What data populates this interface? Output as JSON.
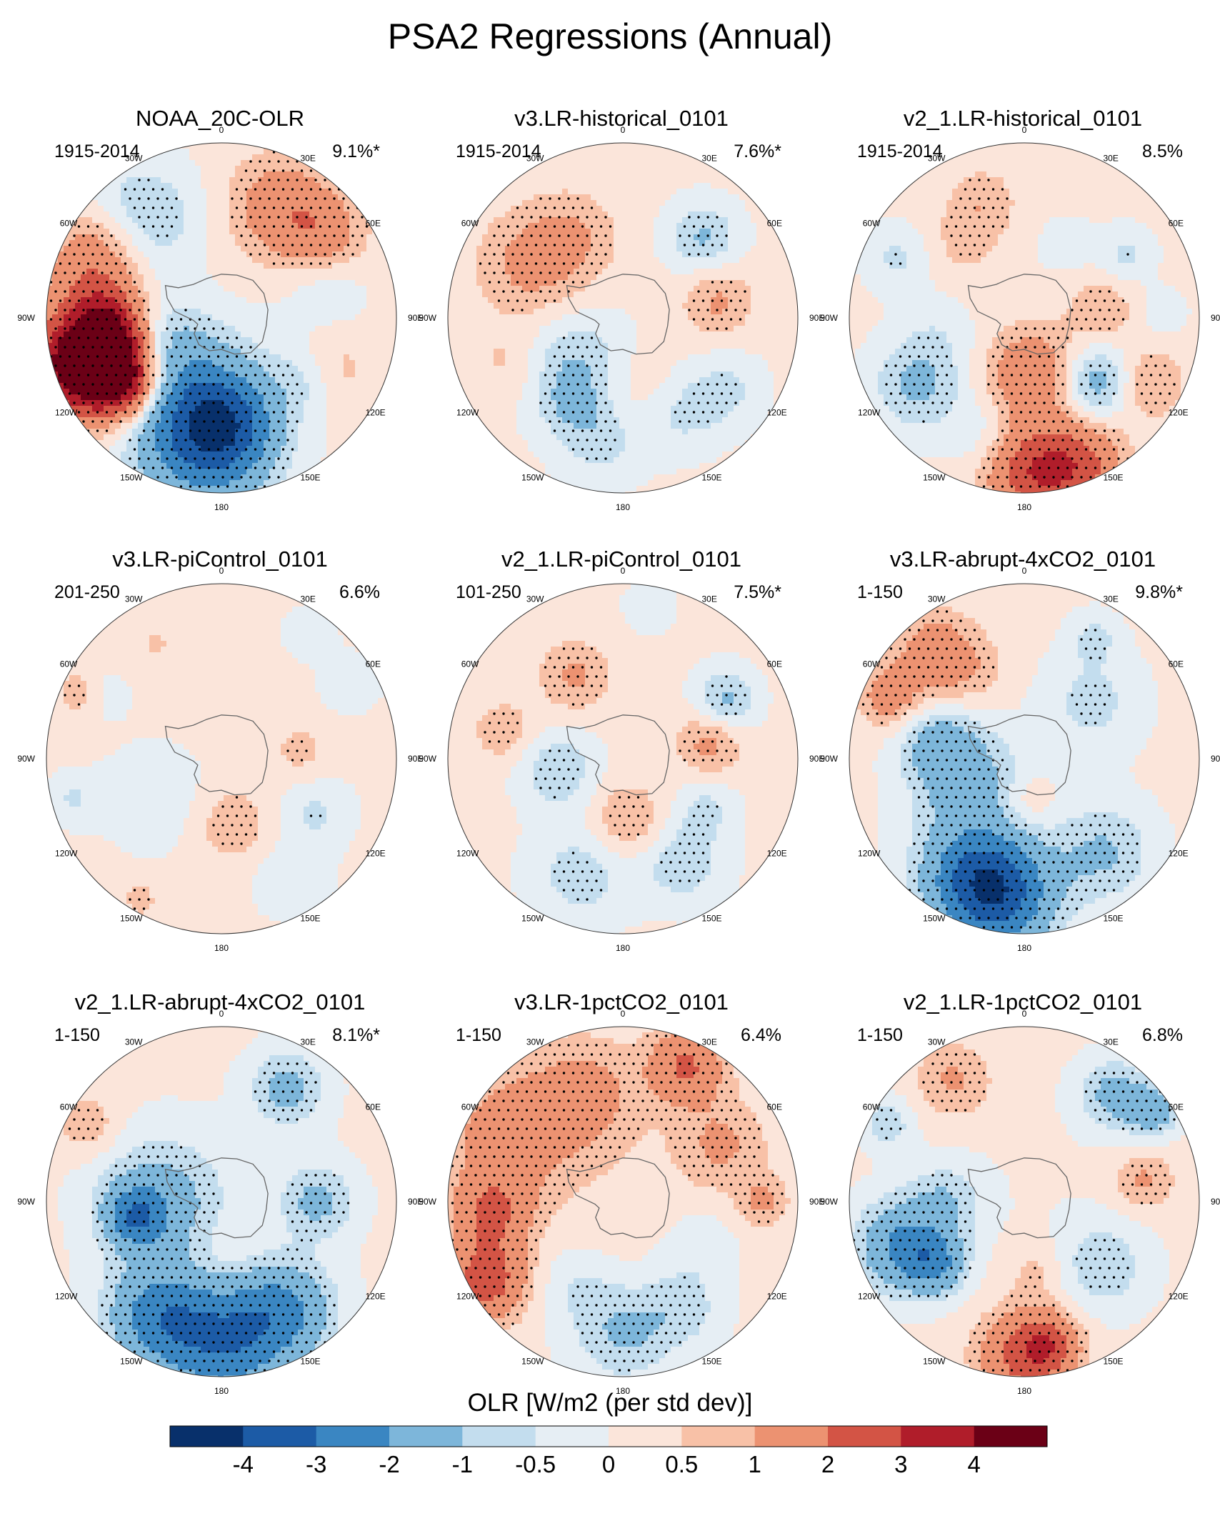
{
  "title": "PSA2 Regressions (Annual)",
  "chart_data": {
    "type": "polar_stereographic_contour_maps",
    "variable": "OLR",
    "colorbar": {
      "label": "OLR [W/m2 (per std dev)]",
      "levels": [
        "-4",
        "-3",
        "-2",
        "-1",
        "-0.5",
        "0",
        "0.5",
        "1",
        "2",
        "3",
        "4"
      ],
      "colors": [
        "#08306b",
        "#1c5ba6",
        "#3a86c2",
        "#7db6da",
        "#c3ddee",
        "#e6eef4",
        "#fbe5da",
        "#f8c1a7",
        "#ec9271",
        "#d35445",
        "#b01d2a",
        "#6b0016"
      ]
    },
    "longitude_labels": [
      "0",
      "30E",
      "60E",
      "90E",
      "120E",
      "150E",
      "180",
      "150W",
      "120W",
      "90W",
      "60W",
      "30W"
    ],
    "panels": [
      {
        "title": "NOAA_20C-OLR",
        "period": "1915-2014",
        "percent": "9.1%*",
        "blobs": [
          [
            240,
            1.0,
            0.72,
            0.17,
            1.5
          ],
          [
            250,
            1.0,
            0.9,
            0.22,
            2.6
          ],
          [
            255,
            1.0,
            0.82,
            0.17,
            2.3
          ],
          [
            265,
            1.0,
            0.63,
            0.15,
            3.2
          ],
          [
            238,
            1.0,
            0.65,
            0.14,
            3.2
          ],
          [
            283,
            0.82,
            0.8,
            0.16,
            1.0
          ],
          [
            300,
            1.0,
            0.78,
            0.2,
            1.5
          ],
          [
            320,
            1.0,
            0.73,
            0.22,
            -1.4
          ],
          [
            0,
            0.08,
            0.25,
            0.18,
            1.0
          ],
          [
            27,
            1.0,
            0.72,
            0.2,
            1.4
          ],
          [
            50,
            1.0,
            0.75,
            0.17,
            1.3
          ],
          [
            75,
            0.8,
            0.62,
            0.16,
            -0.7
          ],
          [
            115,
            0.72,
            0.7,
            0.16,
            1.0
          ],
          [
            125,
            1.0,
            0.6,
            0.14,
            -0.8
          ],
          [
            188,
            1.0,
            0.72,
            0.26,
            -2.6
          ],
          [
            176,
            1.0,
            0.6,
            0.2,
            -1.8
          ],
          [
            210,
            1.0,
            0.45,
            0.3,
            -1.3
          ],
          [
            245,
            0.9,
            0.42,
            0.2,
            -0.8
          ]
        ]
      },
      {
        "title": "v3.LR-historical_0101",
        "period": "1915-2014",
        "percent": "7.6%*",
        "blobs": [
          [
            300,
            1.0,
            0.6,
            0.22,
            1.1
          ],
          [
            330,
            1.0,
            0.55,
            0.18,
            0.7
          ],
          [
            45,
            1.0,
            0.65,
            0.14,
            -1.2
          ],
          [
            80,
            1.0,
            0.55,
            0.14,
            1.0
          ],
          [
            225,
            1.0,
            0.4,
            0.22,
            -1.2
          ],
          [
            248,
            1.0,
            0.7,
            0.15,
            0.6
          ],
          [
            165,
            1.0,
            0.45,
            0.18,
            0.6
          ],
          [
            150,
            0.78,
            0.62,
            0.17,
            -1.1
          ],
          [
            125,
            0.7,
            0.72,
            0.15,
            -1.0
          ],
          [
            190,
            1.0,
            0.72,
            0.17,
            -0.8
          ],
          [
            210,
            0.8,
            0.58,
            0.12,
            -0.7
          ]
        ]
      },
      {
        "title": "v2_1.LR-historical_0101",
        "period": "1915-2014",
        "percent": "8.5%",
        "blobs": [
          [
            340,
            0.85,
            0.7,
            0.14,
            0.9
          ],
          [
            320,
            0.75,
            0.55,
            0.14,
            0.7
          ],
          [
            30,
            0.8,
            0.48,
            0.1,
            -0.7
          ],
          [
            58,
            0.75,
            0.68,
            0.11,
            -1.0
          ],
          [
            295,
            0.8,
            0.8,
            0.13,
            -0.9
          ],
          [
            85,
            0.8,
            0.45,
            0.14,
            1.0
          ],
          [
            88,
            0.6,
            0.78,
            0.1,
            -0.8
          ],
          [
            238,
            1.0,
            0.72,
            0.18,
            -1.3
          ],
          [
            170,
            1.0,
            0.33,
            0.18,
            1.8
          ],
          [
            132,
            1.0,
            0.55,
            0.15,
            -1.7
          ],
          [
            118,
            0.85,
            0.8,
            0.14,
            1.2
          ],
          [
            160,
            1.0,
            0.9,
            0.18,
            2.1
          ],
          [
            178,
            1.0,
            0.88,
            0.18,
            2.3
          ],
          [
            200,
            0.9,
            0.72,
            0.14,
            -0.6
          ],
          [
            260,
            0.8,
            0.5,
            0.15,
            -0.5
          ]
        ]
      },
      {
        "title": "v3.LR-piControl_0101",
        "period": "201-250",
        "percent": "6.6%",
        "blobs": [
          [
            240,
            0.9,
            0.45,
            0.2,
            -0.6
          ],
          [
            85,
            0.8,
            0.45,
            0.12,
            0.7
          ],
          [
            170,
            1.0,
            0.38,
            0.15,
            0.8
          ],
          [
            120,
            1.0,
            0.62,
            0.14,
            -0.7
          ],
          [
            255,
            0.8,
            0.88,
            0.1,
            -0.8
          ],
          [
            295,
            0.8,
            0.9,
            0.09,
            0.9
          ],
          [
            300,
            0.7,
            0.75,
            0.1,
            -0.6
          ],
          [
            330,
            0.8,
            0.75,
            0.15,
            0.5
          ],
          [
            35,
            0.8,
            0.88,
            0.1,
            -0.6
          ],
          [
            60,
            0.7,
            0.85,
            0.12,
            -0.6
          ],
          [
            150,
            0.9,
            0.8,
            0.15,
            -0.6
          ],
          [
            210,
            0.8,
            0.93,
            0.06,
            1.0
          ]
        ]
      },
      {
        "title": "v2_1.LR-piControl_0101",
        "period": "101-250",
        "percent": "7.5%*",
        "blobs": [
          [
            330,
            1.0,
            0.55,
            0.14,
            1.0
          ],
          [
            260,
            1.0,
            0.38,
            0.15,
            -1.1
          ],
          [
            60,
            1.0,
            0.68,
            0.12,
            -1.3
          ],
          [
            80,
            1.0,
            0.5,
            0.13,
            1.1
          ],
          [
            175,
            1.0,
            0.36,
            0.15,
            1.0
          ],
          [
            150,
            1.0,
            0.68,
            0.17,
            -1.0
          ],
          [
            200,
            1.0,
            0.7,
            0.2,
            -0.9
          ],
          [
            120,
            1.0,
            0.55,
            0.12,
            -0.7
          ],
          [
            283,
            1.0,
            0.7,
            0.12,
            0.8
          ],
          [
            10,
            0.8,
            0.88,
            0.1,
            -0.6
          ]
        ]
      },
      {
        "title": "v3.LR-abrupt-4xCO2_0101",
        "period": "1-150",
        "percent": "9.8%*",
        "blobs": [
          [
            320,
            1.0,
            0.78,
            0.16,
            1.5
          ],
          [
            295,
            1.0,
            0.85,
            0.12,
            1.4
          ],
          [
            190,
            1.0,
            0.8,
            0.22,
            -3.0
          ],
          [
            205,
            1.0,
            0.72,
            0.22,
            -2.0
          ],
          [
            140,
            1.0,
            0.7,
            0.2,
            -1.2
          ],
          [
            250,
            1.0,
            0.35,
            0.22,
            -1.4
          ],
          [
            280,
            1.0,
            0.5,
            0.15,
            -1.2
          ],
          [
            50,
            1.0,
            0.5,
            0.2,
            -0.8
          ],
          [
            175,
            1.0,
            0.25,
            0.1,
            0.6
          ],
          [
            30,
            0.8,
            0.8,
            0.1,
            -0.9
          ],
          [
            330,
            0.8,
            0.55,
            0.15,
            0.6
          ]
        ]
      },
      {
        "title": "v2_1.LR-abrupt-4xCO2_0101",
        "period": "1-150",
        "percent": "8.1%*",
        "blobs": [
          [
            0,
            0.08,
            0.0,
            0.5,
            -1.0
          ],
          [
            270,
            1.0,
            0.35,
            0.25,
            -1.5
          ],
          [
            180,
            1.0,
            0.8,
            0.25,
            -2.8
          ],
          [
            210,
            1.0,
            0.75,
            0.2,
            -2.2
          ],
          [
            150,
            1.0,
            0.72,
            0.2,
            -2.0
          ],
          [
            260,
            1.0,
            0.5,
            0.12,
            -2.2
          ],
          [
            300,
            1.0,
            0.88,
            0.12,
            0.8
          ],
          [
            175,
            1.0,
            0.33,
            0.15,
            0.4
          ],
          [
            30,
            1.0,
            0.75,
            0.15,
            -1.4
          ],
          [
            90,
            1.0,
            0.55,
            0.15,
            -1.3
          ]
        ]
      },
      {
        "title": "v3.LR-1pctCO2_0101",
        "period": "1-150",
        "percent": "6.4%",
        "blobs": [
          [
            0,
            0.12,
            0.05,
            0.3,
            1.6
          ],
          [
            240,
            1.0,
            0.9,
            0.16,
            2.4
          ],
          [
            265,
            1.0,
            0.75,
            0.16,
            1.8
          ],
          [
            300,
            1.0,
            0.75,
            0.25,
            1.4
          ],
          [
            340,
            1.0,
            0.65,
            0.22,
            1.2
          ],
          [
            25,
            1.0,
            0.85,
            0.15,
            2.0
          ],
          [
            60,
            1.0,
            0.65,
            0.18,
            1.0
          ],
          [
            90,
            1.0,
            0.8,
            0.1,
            1.0
          ],
          [
            180,
            1.0,
            0.75,
            0.2,
            -1.2
          ],
          [
            150,
            1.0,
            0.7,
            0.16,
            -0.8
          ],
          [
            120,
            0.8,
            0.5,
            0.15,
            -0.6
          ],
          [
            210,
            0.8,
            0.55,
            0.15,
            -0.7
          ]
        ]
      },
      {
        "title": "v2_1.LR-1pctCO2_0101",
        "period": "1-150",
        "percent": "6.8%",
        "blobs": [
          [
            0,
            0.08,
            0.0,
            0.5,
            -1.0
          ],
          [
            250,
            1.0,
            0.75,
            0.18,
            -2.2
          ],
          [
            235,
            1.0,
            0.62,
            0.12,
            -1.8
          ],
          [
            180,
            1.0,
            0.88,
            0.18,
            2.2
          ],
          [
            170,
            1.0,
            0.82,
            0.12,
            1.6
          ],
          [
            330,
            1.0,
            0.8,
            0.15,
            1.0
          ],
          [
            40,
            1.0,
            0.8,
            0.14,
            -1.4
          ],
          [
            55,
            1.0,
            0.9,
            0.1,
            -1.6
          ],
          [
            80,
            1.0,
            0.7,
            0.12,
            1.0
          ],
          [
            270,
            1.0,
            0.45,
            0.15,
            -1.0
          ],
          [
            130,
            1.0,
            0.58,
            0.18,
            -1.0
          ],
          [
            170,
            0.8,
            0.4,
            0.12,
            0.7
          ],
          [
            300,
            0.8,
            0.9,
            0.1,
            -1.2
          ]
        ]
      }
    ]
  }
}
